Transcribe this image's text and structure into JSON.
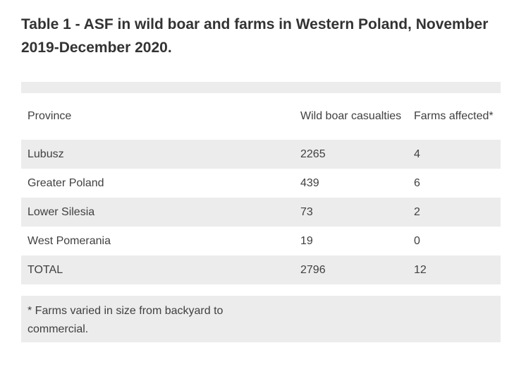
{
  "title": "Table 1 - ASF in wild boar and farms in Western Poland, November 2019-December 2020.",
  "table": {
    "headers": [
      "Province",
      "Wild boar casualties",
      "Farms affected*"
    ],
    "rows": [
      [
        "Lubusz",
        "2265",
        "4"
      ],
      [
        "Greater Poland",
        "439",
        "6"
      ],
      [
        "Lower Silesia",
        "73",
        "2"
      ],
      [
        "West Pomerania",
        "19",
        "0"
      ],
      [
        "TOTAL",
        "2796",
        "12"
      ]
    ]
  },
  "footnote": "* Farms varied in size from backyard to commercial.",
  "colors": {
    "shade": "#ececec",
    "text": "#404040",
    "title": "#333333"
  }
}
